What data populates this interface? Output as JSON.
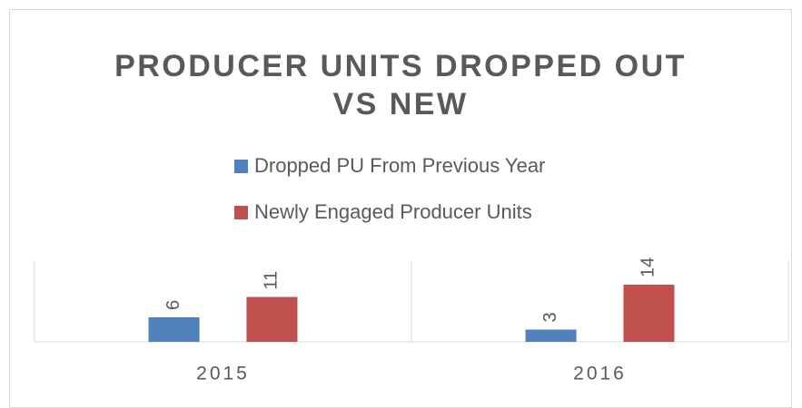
{
  "chart_data": {
    "type": "bar",
    "title": "PRODUCER UNITS DROPPED OUT VS NEW",
    "categories": [
      "2015",
      "2016"
    ],
    "series": [
      {
        "name": "Dropped PU From Previous Year",
        "color": "#4f81bd",
        "values": [
          6,
          3
        ]
      },
      {
        "name": "Newly Engaged Producer Units",
        "color": "#c0504d",
        "values": [
          11,
          14
        ]
      }
    ],
    "ylim": [
      0,
      20
    ],
    "legend": "top"
  }
}
